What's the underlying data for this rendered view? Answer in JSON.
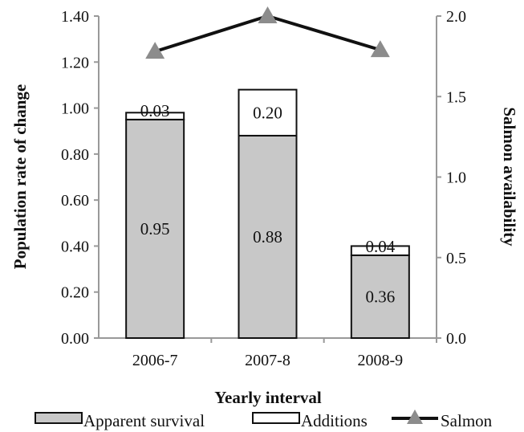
{
  "chart_data": {
    "type": "bar",
    "stacked": true,
    "categories": [
      "2006-7",
      "2007-8",
      "2008-9"
    ],
    "series": [
      {
        "name": "Apparent survival",
        "kind": "bar",
        "axis": "left",
        "color": "#c8c8c8",
        "values": [
          0.95,
          0.88,
          0.36
        ],
        "labels": [
          "0.95",
          "0.88",
          "0.36"
        ]
      },
      {
        "name": "Additions",
        "kind": "bar",
        "axis": "left",
        "color": "#ffffff",
        "values": [
          0.03,
          0.2,
          0.04
        ],
        "labels": [
          "0.03",
          "0.20",
          "0.04"
        ]
      },
      {
        "name": "Salmon",
        "kind": "line",
        "axis": "right",
        "color": "#111111",
        "marker_color": "#8c8c8c",
        "marker": "triangle",
        "values": [
          1.78,
          2.0,
          1.79
        ]
      }
    ],
    "xlabel": "Yearly interval",
    "ylabel": "Population rate of change",
    "y2label": "Salmon availability",
    "ylim": [
      0,
      1.4
    ],
    "y2lim": [
      0,
      2.0
    ],
    "yticks": [
      "0.00",
      "0.20",
      "0.40",
      "0.60",
      "0.80",
      "1.00",
      "1.20",
      "1.40"
    ],
    "y2ticks": [
      "0.0",
      "0.5",
      "1.0",
      "1.5",
      "2.0"
    ],
    "grid": false,
    "legend_position": "bottom"
  }
}
